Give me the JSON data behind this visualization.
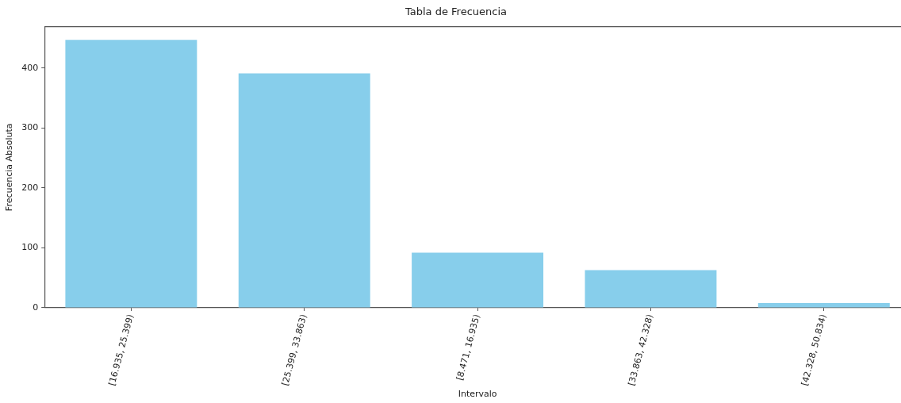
{
  "chart_data": {
    "type": "bar",
    "title": "Tabla de Frecuencia",
    "xlabel": "Intervalo",
    "ylabel": "Frecuencia Absoluta",
    "categories": [
      "[16.935, 25.399)",
      "[25.399, 33.863)",
      "[8.471, 16.935)",
      "[33.863, 42.328)",
      "[42.328, 50.834)"
    ],
    "values": [
      447,
      391,
      92,
      63,
      8
    ],
    "color": "#87ceeb",
    "ylim": [
      0,
      469
    ],
    "yticks": [
      0,
      100,
      200,
      300,
      400
    ],
    "grid": false,
    "legend": false
  }
}
